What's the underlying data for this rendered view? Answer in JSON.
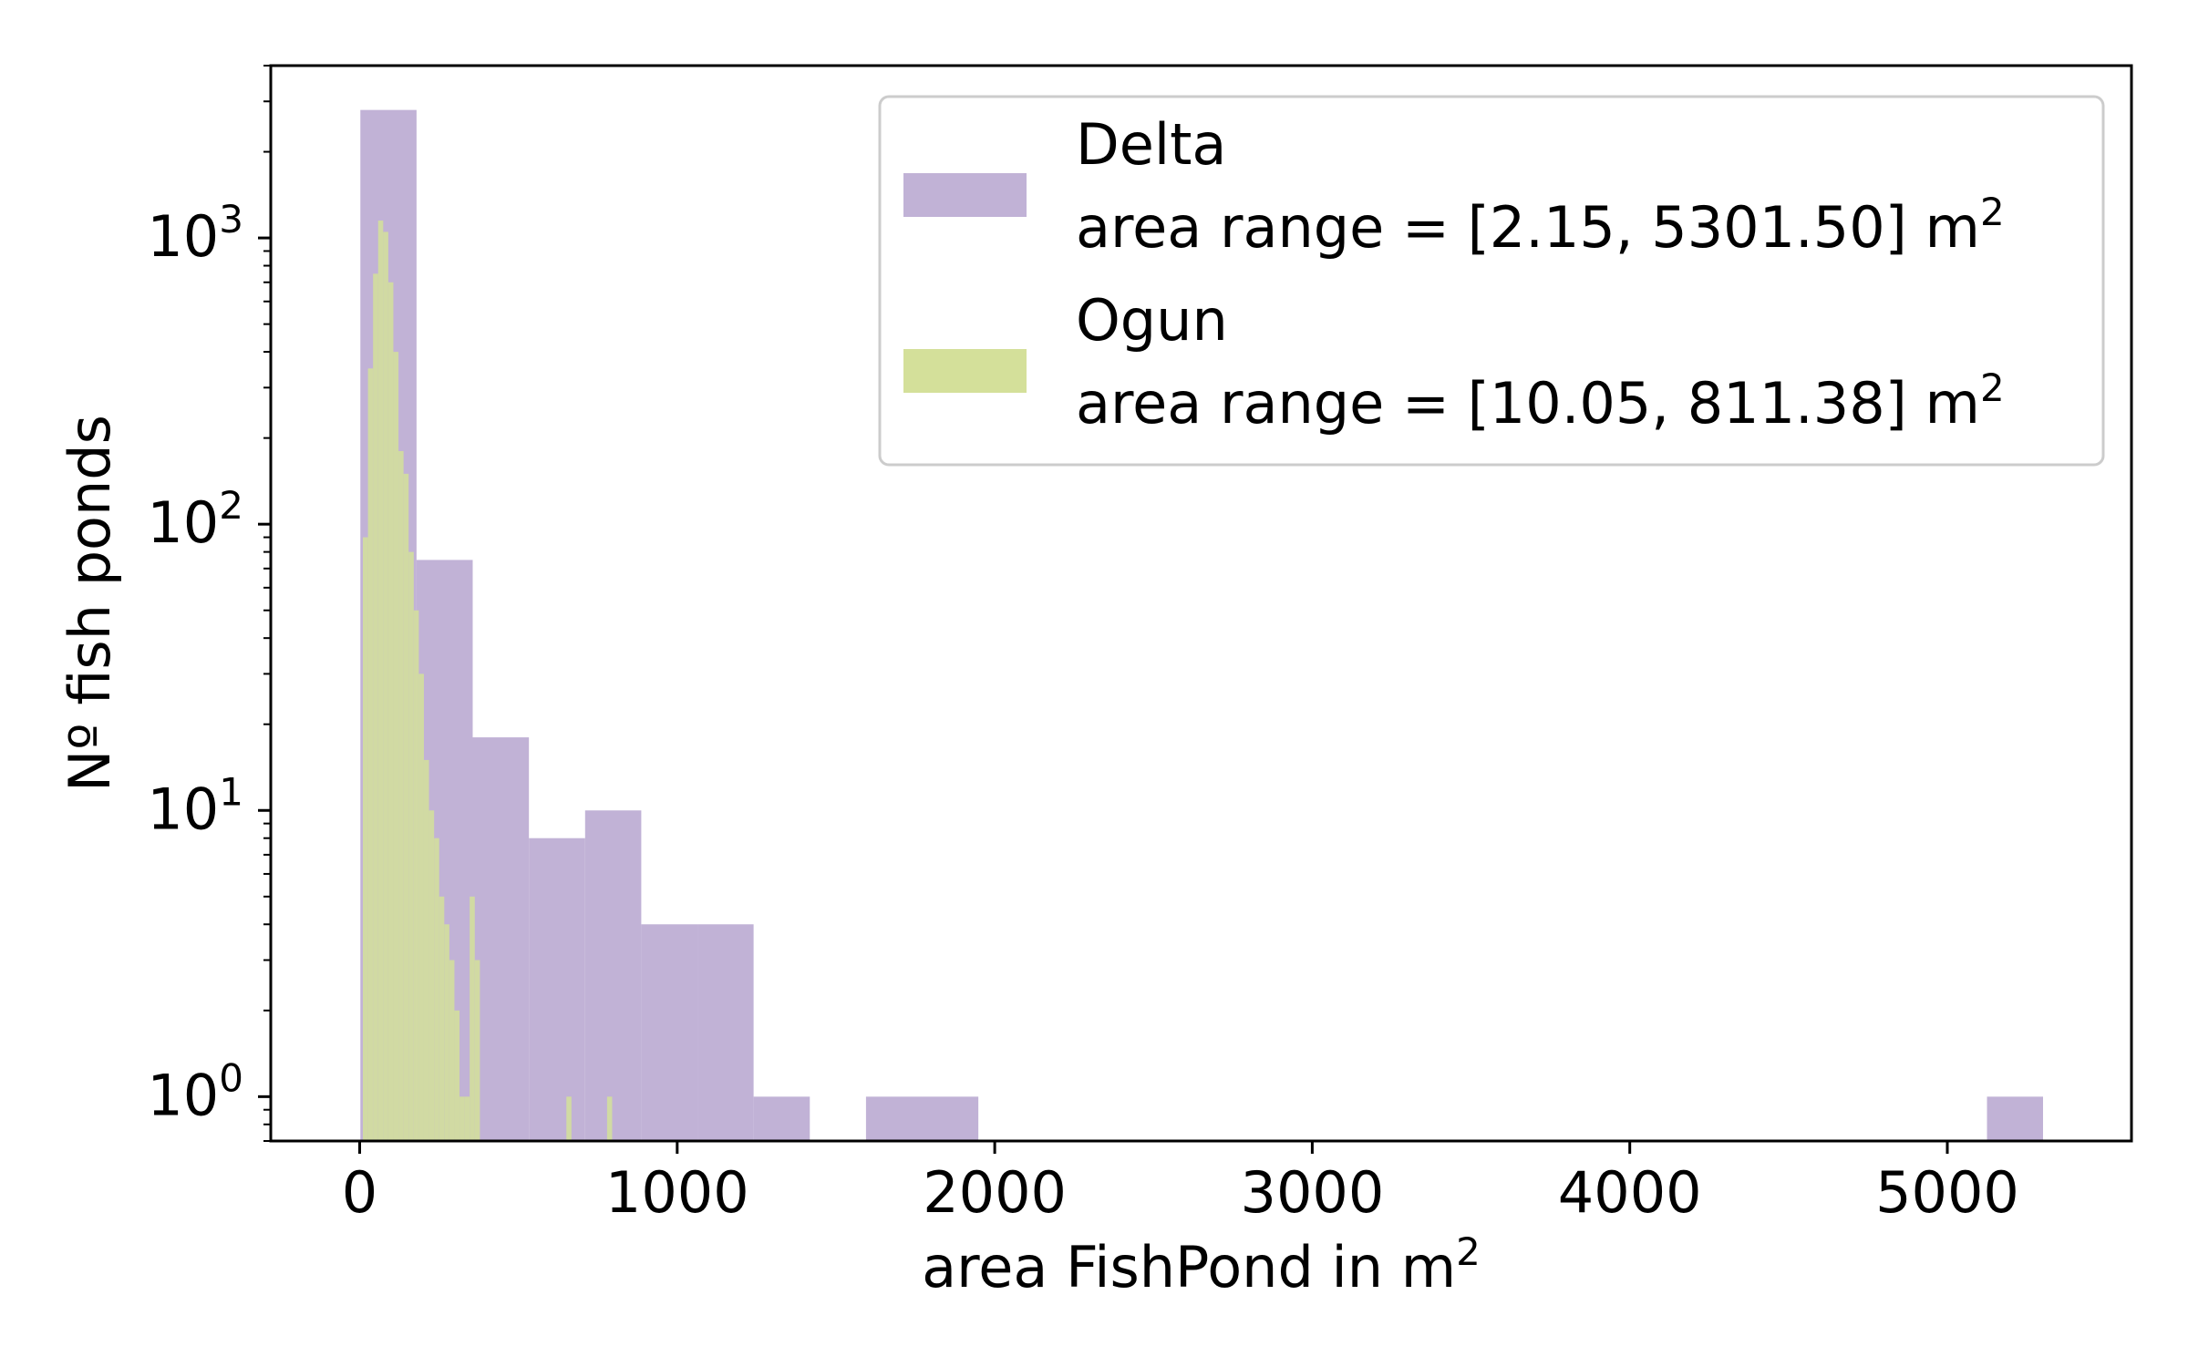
{
  "chart_data": {
    "type": "bar",
    "subtype": "histogram",
    "xlabel": "area FishPond in m",
    "xlabel_sup": "2",
    "ylabel": "Nº fish ponds",
    "xlim": [
      -280,
      5580
    ],
    "ylim": [
      0.7,
      4000
    ],
    "yscale": "log",
    "x_ticks": [
      0,
      1000,
      2000,
      3000,
      4000,
      5000
    ],
    "y_ticks": [
      {
        "value": 1,
        "base": "10",
        "exp": "0"
      },
      {
        "value": 10,
        "base": "10",
        "exp": "1"
      },
      {
        "value": 100,
        "base": "10",
        "exp": "2"
      },
      {
        "value": 1000,
        "base": "10",
        "exp": "3"
      }
    ],
    "legend_position": "top-right",
    "series": [
      {
        "name": "Delta",
        "range_label": "area range = [2.15, 5301.50] m",
        "range_sup": "2",
        "color": "#c1b2d6",
        "bin_edges": [
          2.15,
          179.1,
          356.0,
          533.0,
          710.0,
          886.8,
          1063.8,
          1240.6,
          1417.6,
          1594.6,
          1771.4,
          1948.4,
          5125.0,
          5301.5
        ],
        "counts": [
          2800,
          75,
          18,
          8,
          10,
          4,
          4,
          1,
          0,
          1,
          1,
          0,
          1
        ]
      },
      {
        "name": "Ogun",
        "range_label": "area range = [10.05, 811.38] m",
        "range_sup": "2",
        "color": "#d4e09a",
        "bin_edges": [
          10.05,
          26.1,
          42.1,
          58.1,
          74.1,
          90.1,
          106.1,
          122.2,
          138.2,
          154.2,
          170.3,
          186.3,
          202.3,
          218.3,
          234.4,
          250.4,
          266.4,
          282.4,
          298.4,
          314.5,
          330.5,
          346.5,
          362.5,
          378.6,
          394.6,
          410.6,
          426.6,
          442.7,
          458.7,
          474.7,
          490.7,
          506.8,
          522.8,
          538.8,
          554.8,
          570.8,
          586.9,
          602.9,
          618.9,
          634.9,
          651.0,
          667.0,
          683.0,
          699.0,
          715.1,
          731.1,
          747.1,
          763.1,
          779.2,
          795.2,
          811.38
        ],
        "counts": [
          90,
          350,
          750,
          1150,
          1050,
          700,
          400,
          180,
          150,
          80,
          50,
          30,
          15,
          10,
          8,
          5,
          4,
          3,
          2,
          1,
          1,
          5,
          3,
          0,
          0,
          0,
          0,
          0,
          0,
          0,
          0,
          0,
          0,
          0,
          0,
          0,
          0,
          0,
          0,
          0,
          1,
          0,
          0,
          0,
          0,
          0,
          0,
          0,
          1,
          0
        ]
      }
    ]
  }
}
